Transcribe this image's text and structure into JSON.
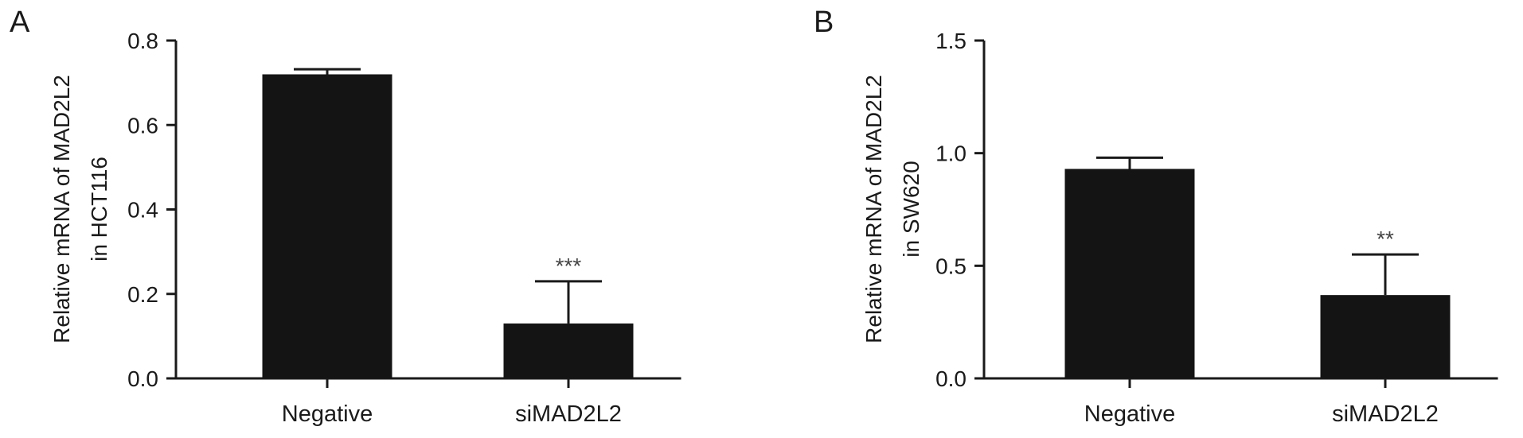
{
  "chart_data": [
    {
      "panel_label": "A",
      "type": "bar",
      "categories": [
        "Negative",
        "siMAD2L2"
      ],
      "values": [
        0.72,
        0.13
      ],
      "errors": [
        0.012,
        0.1
      ],
      "significance": [
        "",
        "***"
      ],
      "ylabel_lines": [
        "Relative mRNA of MAD2L2",
        "in HCT116"
      ],
      "xlabel": "",
      "ylim": [
        0,
        0.8
      ],
      "yticks": [
        0.0,
        0.2,
        0.4,
        0.6,
        0.8
      ],
      "ytick_labels": [
        "0.0",
        "0.2",
        "0.4",
        "0.6",
        "0.8"
      ],
      "grid": false,
      "bar_color": "#141414"
    },
    {
      "panel_label": "B",
      "type": "bar",
      "categories": [
        "Negative",
        "siMAD2L2"
      ],
      "values": [
        0.93,
        0.37
      ],
      "errors": [
        0.05,
        0.18
      ],
      "significance": [
        "",
        "**"
      ],
      "ylabel_lines": [
        "Relative mRNA of MAD2L2",
        "in SW620"
      ],
      "xlabel": "",
      "ylim": [
        0,
        1.5
      ],
      "yticks": [
        0.0,
        0.5,
        1.0,
        1.5
      ],
      "ytick_labels": [
        "0.0",
        "0.5",
        "1.0",
        "1.5"
      ],
      "grid": false,
      "bar_color": "#141414"
    }
  ]
}
